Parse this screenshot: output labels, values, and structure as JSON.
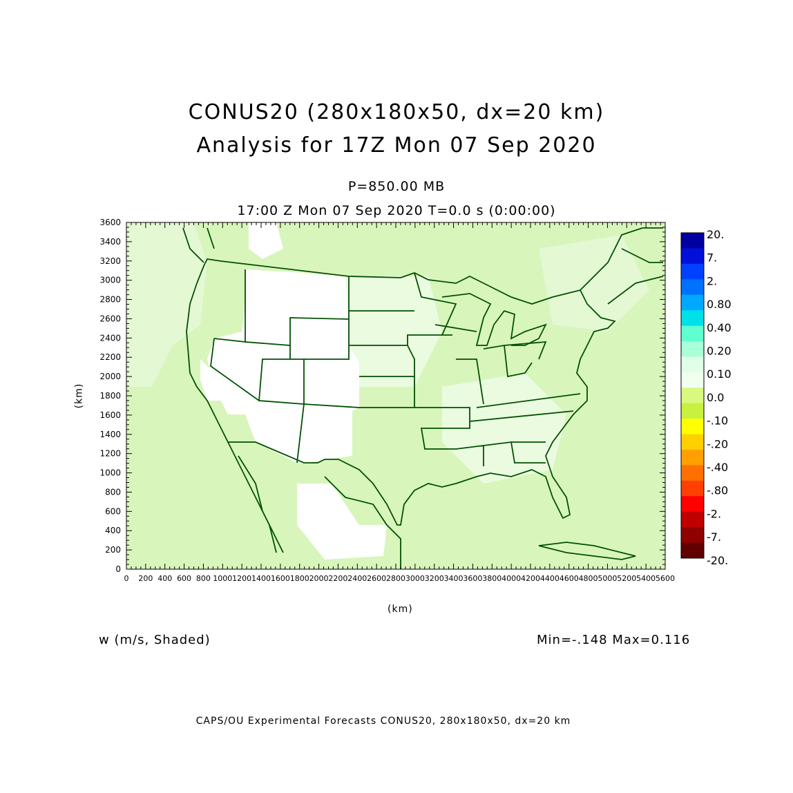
{
  "header": {
    "title_line1": "CONUS20 (280x180x50, dx=20 km)",
    "title_line2": "Analysis for 17Z Mon 07 Sep 2020",
    "level": "P=850.00 MB",
    "valid_time": "17:00 Z Mon 07 Sep 2020    T=0.0 s (0:00:00)"
  },
  "axes": {
    "x_label": "(km)",
    "y_label": "(km)",
    "x_ticks": [
      "0",
      "200",
      "400",
      "600",
      "800",
      "1000",
      "1200",
      "1400",
      "1600",
      "1800",
      "2000",
      "2200",
      "2400",
      "2600",
      "2800",
      "3000",
      "3200",
      "3400",
      "3600",
      "3800",
      "4000",
      "4200",
      "4400",
      "4600",
      "4800",
      "5000",
      "5200",
      "5400",
      "5600"
    ],
    "y_ticks": [
      "0",
      "200",
      "400",
      "600",
      "800",
      "1000",
      "1200",
      "1400",
      "1600",
      "1800",
      "2000",
      "2200",
      "2400",
      "2600",
      "2800",
      "3000",
      "3200",
      "3400",
      "3600"
    ],
    "x_range": [
      0,
      5600
    ],
    "y_range": [
      0,
      3600
    ]
  },
  "colorbar": {
    "labels": [
      "20.",
      "7.",
      "2.",
      "0.80",
      "0.40",
      "0.20",
      "0.10",
      "0.0",
      "-.10",
      "-.20",
      "-.40",
      "-.80",
      "-2.",
      "-7.",
      "-20."
    ],
    "colors": [
      "#0000a0",
      "#0010d8",
      "#0040ff",
      "#0070ff",
      "#00a8ff",
      "#00e0e8",
      "#60ffd0",
      "#a8ffd8",
      "#e0ffe8",
      "#f0fff0",
      "#d8f880",
      "#c8f040",
      "#ffff00",
      "#ffd000",
      "#ffa000",
      "#ff7000",
      "#ff4000",
      "#ff0000",
      "#c00000",
      "#900000",
      "#600000"
    ]
  },
  "field": {
    "description_label": "w (m/s, Shaded)",
    "minmax": "Min=-.148  Max=0.116"
  },
  "footer": {
    "credit": "CAPS/OU Experimental Forecasts  CONUS20, 280x180x50, dx=20 km"
  },
  "map_colors": {
    "background_field": "#d8f5bc",
    "land_light": "#eefbe4",
    "zero_white": "#ffffff",
    "boundary": "#005000"
  }
}
